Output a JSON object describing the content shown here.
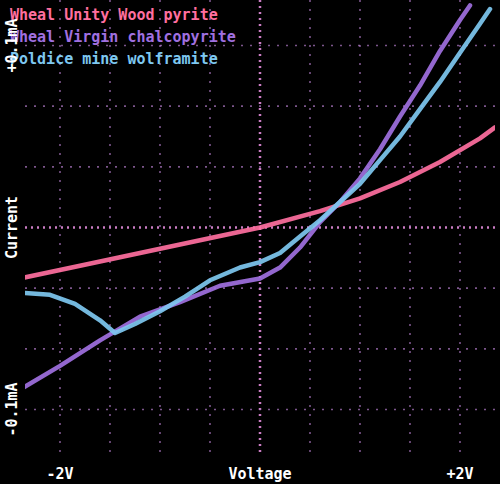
{
  "chart_data": {
    "type": "line",
    "x_label": "Voltage",
    "y_label": "Current",
    "xlim": [
      -2.35,
      2.35
    ],
    "ylim": [
      -0.125,
      0.125
    ],
    "xticks": [
      {
        "value": -2,
        "label": "-2V"
      },
      {
        "value": 2,
        "label": "+2V"
      }
    ],
    "yticks": [
      {
        "value": -0.1,
        "label": "-0.1mA"
      },
      {
        "value": 0.1,
        "label": "+0.1mA"
      }
    ],
    "grid": true,
    "legend": "top-left",
    "series": [
      {
        "name": "Wheal Unity Wood pyrite",
        "color": "#ff6f9f",
        "x": [
          -2.4,
          -1.8,
          -1.2,
          -0.6,
          0,
          0.6,
          1.0,
          1.4,
          1.8,
          2.2,
          2.35
        ],
        "values": [
          -0.028,
          -0.021,
          -0.014,
          -0.007,
          0,
          0.009,
          0.016,
          0.025,
          0.036,
          0.049,
          0.055
        ]
      },
      {
        "name": "Wheal Virgin chalcopyrite",
        "color": "#a070e0",
        "x": [
          -2.4,
          -2.0,
          -1.6,
          -1.2,
          -0.8,
          -0.4,
          0,
          0.2,
          0.4,
          0.6,
          0.8,
          1.0,
          1.2,
          1.4,
          1.6,
          1.8,
          2.0,
          2.1
        ],
        "values": [
          -0.089,
          -0.076,
          -0.062,
          -0.049,
          -0.041,
          -0.032,
          -0.028,
          -0.022,
          -0.011,
          0.003,
          0.014,
          0.027,
          0.043,
          0.061,
          0.078,
          0.097,
          0.114,
          0.122
        ]
      },
      {
        "name": "Poldice mine wolframite",
        "color": "#7ec8f0",
        "x": [
          -2.35,
          -2.1,
          -1.85,
          -1.6,
          -1.45,
          -1.25,
          -1.0,
          -0.75,
          -0.5,
          -0.2,
          0,
          0.2,
          0.4,
          0.6,
          0.8,
          1.0,
          1.2,
          1.4,
          1.6,
          1.8,
          2.0,
          2.2,
          2.3
        ],
        "values": [
          -0.036,
          -0.037,
          -0.042,
          -0.051,
          -0.058,
          -0.053,
          -0.046,
          -0.038,
          -0.029,
          -0.022,
          -0.019,
          -0.014,
          -0.005,
          0.004,
          0.014,
          0.024,
          0.037,
          0.05,
          0.065,
          0.08,
          0.096,
          0.112,
          0.12
        ]
      }
    ]
  }
}
